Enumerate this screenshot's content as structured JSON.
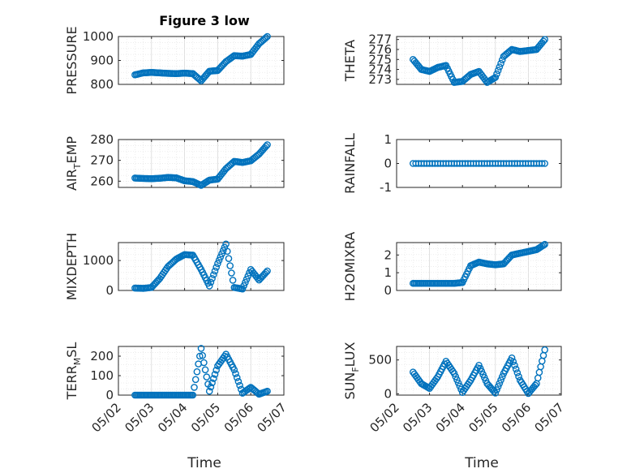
{
  "figure": {
    "title": "Figure 3 low",
    "x_label": "Time",
    "marker_color": "#0072BD",
    "x_ticks": [
      "05/02",
      "05/03",
      "05/04",
      "05/05",
      "05/06",
      "05/07"
    ]
  },
  "chart_data": [
    {
      "type": "scatter",
      "name": "PRESSURE",
      "ylabel_parts": [
        "PRESSURE"
      ],
      "ylim": [
        800,
        1000
      ],
      "yticks": [
        800,
        900,
        1000
      ],
      "grid": true,
      "x": [
        "05/02 12:00",
        "05/02 18:00",
        "05/03 00:00",
        "05/03 06:00",
        "05/03 12:00",
        "05/03 18:00",
        "05/04 00:00",
        "05/04 06:00",
        "05/04 12:00",
        "05/04 18:00",
        "05/05 00:00",
        "05/05 06:00",
        "05/05 12:00",
        "05/05 18:00",
        "05/06 00:00",
        "05/06 06:00",
        "05/06 12:00"
      ],
      "y": [
        840,
        848,
        850,
        848,
        846,
        845,
        847,
        845,
        815,
        855,
        858,
        895,
        920,
        918,
        925,
        970,
        1000
      ]
    },
    {
      "type": "scatter",
      "name": "THETA",
      "ylabel_parts": [
        "THETA"
      ],
      "ylim": [
        272.5,
        277.3
      ],
      "yticks": [
        273,
        274,
        275,
        276,
        277
      ],
      "grid": true,
      "x": [
        "05/02 12:00",
        "05/02 18:00",
        "05/03 00:00",
        "05/03 06:00",
        "05/03 12:00",
        "05/03 18:00",
        "05/04 00:00",
        "05/04 06:00",
        "05/04 12:00",
        "05/04 18:00",
        "05/05 00:00",
        "05/05 06:00",
        "05/05 12:00",
        "05/05 18:00",
        "05/06 00:00",
        "05/06 06:00",
        "05/06 12:00"
      ],
      "y": [
        275.0,
        274.0,
        273.8,
        274.2,
        274.4,
        272.7,
        272.8,
        273.5,
        273.8,
        272.7,
        273.2,
        275.3,
        276.0,
        275.8,
        275.9,
        276.0,
        277.0
      ]
    },
    {
      "type": "scatter",
      "name": "AIR_TEMP",
      "ylabel_parts": [
        "AIR",
        "T",
        "EMP"
      ],
      "ylim": [
        257,
        280
      ],
      "yticks": [
        260,
        270,
        280
      ],
      "grid": true,
      "x": [
        "05/02 12:00",
        "05/02 18:00",
        "05/03 00:00",
        "05/03 06:00",
        "05/03 12:00",
        "05/03 18:00",
        "05/04 00:00",
        "05/04 06:00",
        "05/04 12:00",
        "05/04 18:00",
        "05/05 00:00",
        "05/05 06:00",
        "05/05 12:00",
        "05/05 18:00",
        "05/06 00:00",
        "05/06 06:00",
        "05/06 12:00"
      ],
      "y": [
        261.5,
        261.3,
        261.2,
        261.4,
        261.8,
        261.6,
        260.2,
        259.8,
        258.0,
        260.5,
        261.0,
        266.0,
        269.5,
        269.0,
        269.8,
        273.0,
        277.5
      ]
    },
    {
      "type": "scatter",
      "name": "RAINFALL",
      "ylabel_parts": [
        "RAINFALL"
      ],
      "ylim": [
        -1,
        1
      ],
      "yticks": [
        -1,
        0,
        1
      ],
      "grid": false,
      "x": [
        "05/02 12:00",
        "05/03 00:00",
        "05/03 12:00",
        "05/04 00:00",
        "05/04 12:00",
        "05/05 00:00",
        "05/05 12:00",
        "05/06 00:00",
        "05/06 12:00"
      ],
      "y": [
        0,
        0,
        0,
        0,
        0,
        0,
        0,
        0,
        0
      ]
    },
    {
      "type": "scatter",
      "name": "MIXDEPTH",
      "ylabel_parts": [
        "MIXDEPTH"
      ],
      "ylim": [
        0,
        1600
      ],
      "yticks": [
        0,
        1000
      ],
      "grid": true,
      "x": [
        "05/02 12:00",
        "05/02 18:00",
        "05/03 00:00",
        "05/03 06:00",
        "05/03 12:00",
        "05/03 18:00",
        "05/04 00:00",
        "05/04 06:00",
        "05/04 12:00",
        "05/04 18:00",
        "05/05 00:00",
        "05/05 06:00",
        "05/05 12:00",
        "05/05 18:00",
        "05/06 00:00",
        "05/06 06:00",
        "05/06 12:00"
      ],
      "y": [
        80,
        70,
        100,
        400,
        800,
        1050,
        1200,
        1180,
        700,
        150,
        900,
        1550,
        100,
        50,
        700,
        350,
        650
      ]
    },
    {
      "type": "scatter",
      "name": "H2OMIXRA",
      "ylabel_parts": [
        "H2OMIXRA"
      ],
      "ylim": [
        0,
        2.7
      ],
      "yticks": [
        0,
        1,
        2
      ],
      "grid": true,
      "x": [
        "05/02 12:00",
        "05/02 18:00",
        "05/03 00:00",
        "05/03 06:00",
        "05/03 12:00",
        "05/03 18:00",
        "05/04 00:00",
        "05/04 06:00",
        "05/04 12:00",
        "05/04 18:00",
        "05/05 00:00",
        "05/05 06:00",
        "05/05 12:00",
        "05/05 18:00",
        "05/06 00:00",
        "05/06 06:00",
        "05/06 12:00"
      ],
      "y": [
        0.4,
        0.4,
        0.4,
        0.4,
        0.4,
        0.4,
        0.45,
        1.4,
        1.6,
        1.5,
        1.45,
        1.5,
        2.0,
        2.1,
        2.2,
        2.3,
        2.6
      ]
    },
    {
      "type": "scatter",
      "name": "TERR_MSL",
      "ylabel_parts": [
        "TERR",
        "M",
        "SL"
      ],
      "ylim": [
        0,
        250
      ],
      "yticks": [
        0,
        100,
        200
      ],
      "grid": true,
      "x": [
        "05/02 12:00",
        "05/02 18:00",
        "05/03 00:00",
        "05/03 06:00",
        "05/03 12:00",
        "05/03 18:00",
        "05/04 00:00",
        "05/04 06:00",
        "05/04 12:00",
        "05/04 18:00",
        "05/05 00:00",
        "05/05 06:00",
        "05/05 12:00",
        "05/05 18:00",
        "05/06 00:00",
        "05/06 06:00",
        "05/06 12:00"
      ],
      "y": [
        0,
        0,
        0,
        0,
        0,
        0,
        0,
        0,
        240,
        20,
        150,
        210,
        130,
        10,
        40,
        5,
        20
      ]
    },
    {
      "type": "scatter",
      "name": "SUN_FLUX",
      "ylabel_parts": [
        "SUN",
        "F",
        "LUX"
      ],
      "ylim": [
        -20,
        700
      ],
      "yticks": [
        0,
        500
      ],
      "grid": true,
      "x": [
        "05/02 12:00",
        "05/02 18:00",
        "05/03 00:00",
        "05/03 06:00",
        "05/03 12:00",
        "05/03 18:00",
        "05/04 00:00",
        "05/04 06:00",
        "05/04 12:00",
        "05/04 18:00",
        "05/05 00:00",
        "05/05 06:00",
        "05/05 12:00",
        "05/05 18:00",
        "05/06 00:00",
        "05/06 06:00",
        "05/06 12:00"
      ],
      "y": [
        320,
        150,
        80,
        250,
        480,
        300,
        20,
        200,
        420,
        150,
        10,
        300,
        530,
        200,
        5,
        150,
        650
      ]
    }
  ]
}
